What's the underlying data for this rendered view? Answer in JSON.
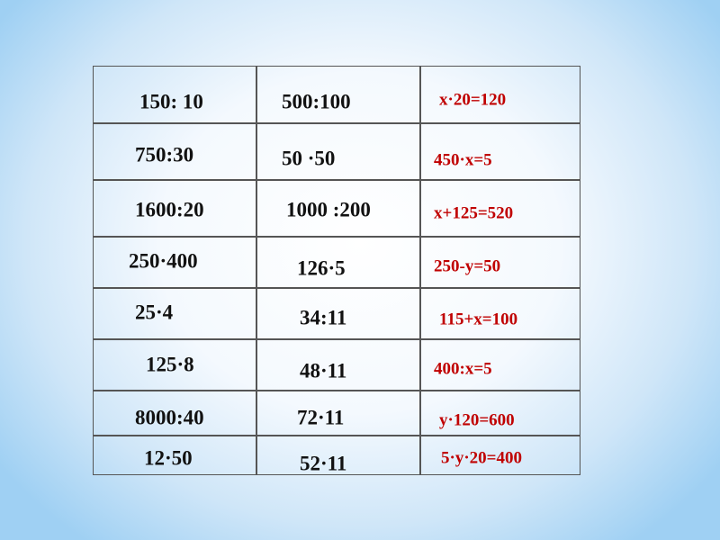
{
  "colors": {
    "text": "#111111",
    "equations": "#c00000",
    "grid": "#555555"
  },
  "rows": [
    [
      "150: 10",
      "500:100",
      "x·20=120"
    ],
    [
      "750:30",
      "50 ·50",
      "450·x=5"
    ],
    [
      "1600:20",
      "1000 :200",
      "x+125=520"
    ],
    [
      "250·400",
      "126·5",
      "250-y=50"
    ],
    [
      "25·4",
      "34:11",
      "115+x=100"
    ],
    [
      "125·8",
      "48·11",
      "400:x=5"
    ],
    [
      "8000:40",
      "72·11",
      "y·120=600"
    ],
    [
      "12·50",
      "52·11",
      "5·y·20=400"
    ]
  ]
}
